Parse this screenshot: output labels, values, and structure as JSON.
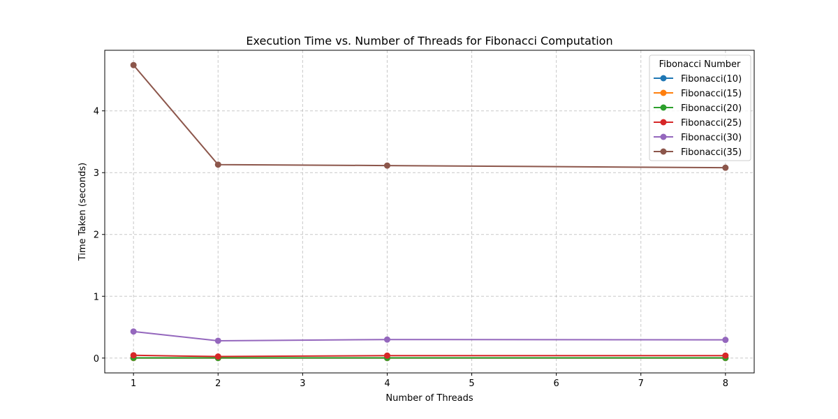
{
  "chart_data": {
    "type": "line",
    "title": "Execution Time vs. Number of Threads for Fibonacci Computation",
    "xlabel": "Number of Threads",
    "ylabel": "Time Taken (seconds)",
    "x": [
      1,
      2,
      4,
      8
    ],
    "xlim": [
      0.66,
      8.34
    ],
    "ylim": [
      -0.24,
      4.98
    ],
    "xticks": [
      1,
      2,
      3,
      4,
      5,
      6,
      7,
      8
    ],
    "yticks": [
      0,
      1,
      2,
      3,
      4
    ],
    "grid": true,
    "legend": {
      "title": "Fibonacci Number",
      "placement": "top-right"
    },
    "series": [
      {
        "name": "Fibonacci(10)",
        "color": "#1f77b4",
        "values": [
          0.0,
          0.0,
          0.0,
          0.0
        ]
      },
      {
        "name": "Fibonacci(15)",
        "color": "#ff7f0e",
        "values": [
          0.001,
          0.001,
          0.001,
          0.001
        ]
      },
      {
        "name": "Fibonacci(20)",
        "color": "#2ca02c",
        "values": [
          0.005,
          0.004,
          0.004,
          0.004
        ]
      },
      {
        "name": "Fibonacci(25)",
        "color": "#d62728",
        "values": [
          0.045,
          0.025,
          0.04,
          0.04
        ]
      },
      {
        "name": "Fibonacci(30)",
        "color": "#9467bd",
        "values": [
          0.43,
          0.28,
          0.3,
          0.295
        ]
      },
      {
        "name": "Fibonacci(35)",
        "color": "#8c564b",
        "values": [
          4.74,
          3.13,
          3.115,
          3.08
        ]
      }
    ]
  }
}
